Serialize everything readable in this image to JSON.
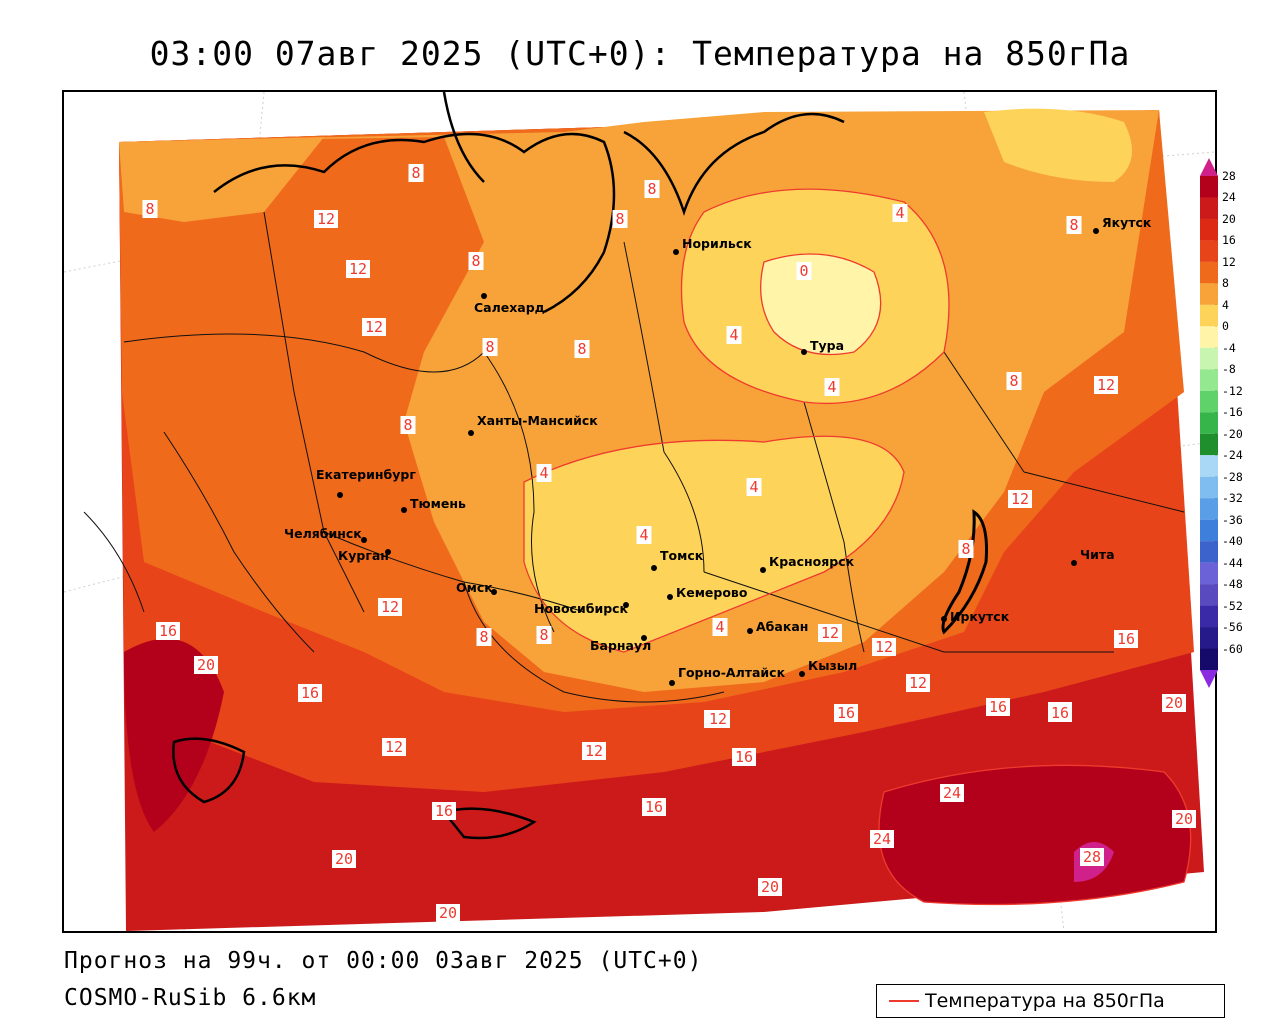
{
  "title": "03:00 07авг 2025 (UTC+0): Температура на 850гПа",
  "footer": {
    "forecast": "Прогноз на 99ч. от 00:00 03авг 2025 (UTC+0)",
    "model": "COSMO-RuSib 6.6км"
  },
  "legend": {
    "label": "Температура на 850гПа",
    "line_color": "#ef3a2e"
  },
  "colorbar": {
    "labels": [
      "28",
      "24",
      "20",
      "16",
      "12",
      "8",
      "4",
      "0",
      "-4",
      "-8",
      "-12",
      "-16",
      "-20",
      "-24",
      "-28",
      "-32",
      "-36",
      "-40",
      "-44",
      "-48",
      "-52",
      "-56",
      "-60"
    ],
    "colors": [
      "#b3001b",
      "#cc1a1a",
      "#dd2a14",
      "#e8441a",
      "#f06a1c",
      "#f7a33a",
      "#fdd35a",
      "#fff4a8",
      "#c8f5b0",
      "#94e890",
      "#5fd36a",
      "#35b54a",
      "#1f8f2e",
      "#a8d8f5",
      "#7fbdf0",
      "#5a9ee8",
      "#3f7fdc",
      "#3c63cc",
      "#6a62d6",
      "#5a4ac0",
      "#3b2aa8",
      "#261a8a",
      "#150a6a"
    ]
  },
  "cities": [
    {
      "name": "Норильск"
    },
    {
      "name": "Якутск"
    },
    {
      "name": "Салехард"
    },
    {
      "name": "Тура"
    },
    {
      "name": "Ханты-Мансийск"
    },
    {
      "name": "Екатеринбург"
    },
    {
      "name": "Тюмень"
    },
    {
      "name": "Челябинск"
    },
    {
      "name": "Курган"
    },
    {
      "name": "Омск"
    },
    {
      "name": "Томск"
    },
    {
      "name": "Красноярск"
    },
    {
      "name": "Новосибирск"
    },
    {
      "name": "Кемерово"
    },
    {
      "name": "Абакан"
    },
    {
      "name": "Барнаул"
    },
    {
      "name": "Горно-Алтайск"
    },
    {
      "name": "Кызыл"
    },
    {
      "name": "Иркутск"
    },
    {
      "name": "Чита"
    }
  ],
  "contour_labels": [
    "8",
    "12",
    "12",
    "12",
    "8",
    "8",
    "8",
    "8",
    "4",
    "0",
    "4",
    "4",
    "4",
    "4",
    "4",
    "8",
    "8",
    "8",
    "16",
    "20",
    "16",
    "12",
    "12",
    "16",
    "16",
    "20",
    "12",
    "12",
    "12",
    "12",
    "16",
    "16",
    "20",
    "24",
    "24",
    "28",
    "20",
    "20",
    "8",
    "12",
    "8",
    "12",
    "16",
    "12",
    "16",
    "20",
    "8",
    "8",
    "12",
    "4",
    "16",
    "16",
    "8"
  ]
}
